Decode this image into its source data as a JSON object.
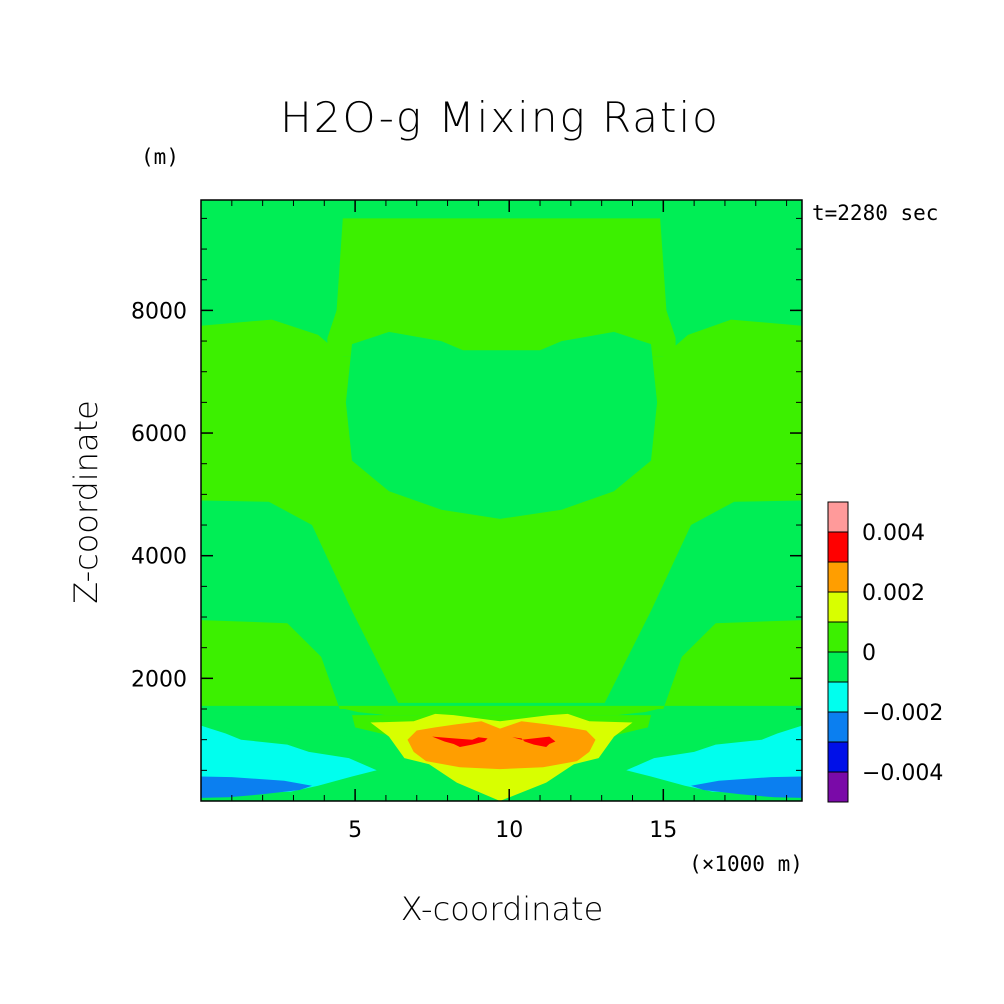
{
  "chart_data": {
    "type": "contour",
    "title": "H2O-g Mixing Ratio",
    "xlabel": "X-coordinate",
    "ylabel": "Z-coordinate",
    "x_unit": "(×1000 m)",
    "y_unit": "(m)",
    "time_label": "t=2280 sec",
    "xlim": [
      0,
      19.5
    ],
    "ylim": [
      0,
      9800
    ],
    "x_ticks": [
      5,
      10,
      15
    ],
    "x_tick_labels": [
      "5",
      "10",
      "15"
    ],
    "y_ticks": [
      2000,
      4000,
      6000,
      8000
    ],
    "y_tick_labels": [
      "2000",
      "4000",
      "6000",
      "8000"
    ],
    "colorbar": {
      "levels": [
        -0.005,
        -0.004,
        -0.003,
        -0.002,
        -0.001,
        0,
        0.001,
        0.002,
        0.003,
        0.004,
        0.005
      ],
      "colors": [
        "#7a0aa8",
        "#0010e8",
        "#0b7ff0",
        "#00ffee",
        "#00ee55",
        "#3cf000",
        "#d8ff00",
        "#ff9e00",
        "#ff0000",
        "#ff9a9a"
      ],
      "tick_values": [
        -0.004,
        -0.002,
        0,
        0.002,
        0.004
      ],
      "tick_labels": [
        "−0.004",
        "−0.002",
        "0",
        "0.002",
        "0.004"
      ]
    },
    "regions": [
      {
        "level": "0 to 0.001",
        "color": "#3cf000",
        "points": [
          [
            0,
            7750
          ],
          [
            2.3,
            7850
          ],
          [
            3.8,
            7600
          ],
          [
            4.6,
            7250
          ],
          [
            15,
            7250
          ],
          [
            15.8,
            7600
          ],
          [
            17.2,
            7850
          ],
          [
            19.5,
            7750
          ],
          [
            19.5,
            4900
          ],
          [
            17.3,
            4880
          ],
          [
            15.9,
            4500
          ],
          [
            14.6,
            3100
          ],
          [
            13.1,
            1600
          ],
          [
            6.4,
            1600
          ],
          [
            4.9,
            3100
          ],
          [
            3.6,
            4500
          ],
          [
            2.2,
            4880
          ],
          [
            0,
            4900
          ]
        ]
      },
      {
        "level": "0 to 0.001",
        "color": "#3cf000",
        "points": [
          [
            0,
            2950
          ],
          [
            2.8,
            2900
          ],
          [
            3.9,
            2350
          ],
          [
            4.5,
            1500
          ],
          [
            15,
            1500
          ],
          [
            15.6,
            2350
          ],
          [
            16.7,
            2900
          ],
          [
            19.5,
            2950
          ],
          [
            19.5,
            1550
          ],
          [
            0,
            1550
          ]
        ]
      },
      {
        "level": "0 to 0.001",
        "color": "#3cf000",
        "points": [
          [
            4.6,
            9500
          ],
          [
            14.9,
            9500
          ],
          [
            15.1,
            8000
          ],
          [
            15.4,
            7550
          ],
          [
            15.4,
            7250
          ],
          [
            4.1,
            7250
          ],
          [
            4.1,
            7550
          ],
          [
            4.4,
            8000
          ]
        ]
      },
      {
        "level": "0 to 0.001",
        "color": "#3cf000",
        "points": [
          [
            4.5,
            1520
          ],
          [
            15,
            1520
          ],
          [
            14.4,
            1450
          ],
          [
            13.5,
            1400
          ],
          [
            6,
            1400
          ],
          [
            5.1,
            1450
          ]
        ]
      },
      {
        "level": "0 to 0.001",
        "color": "#3cf000",
        "points": [
          [
            4.9,
            1400
          ],
          [
            14.6,
            1400
          ],
          [
            14.5,
            1200
          ],
          [
            12.8,
            1000
          ],
          [
            6.7,
            1000
          ],
          [
            5,
            1200
          ]
        ]
      },
      {
        "level": "-0.001 to 0",
        "color": "#00ee55",
        "points": [
          [
            4.9,
            7450
          ],
          [
            6.1,
            7650
          ],
          [
            7.8,
            7500
          ],
          [
            8.5,
            7350
          ],
          [
            11,
            7350
          ],
          [
            11.7,
            7500
          ],
          [
            13.4,
            7650
          ],
          [
            14.6,
            7450
          ],
          [
            14.8,
            6500
          ],
          [
            14.6,
            5550
          ],
          [
            13.4,
            5050
          ],
          [
            11.7,
            4750
          ],
          [
            9.7,
            4600
          ],
          [
            7.8,
            4750
          ],
          [
            6.1,
            5050
          ],
          [
            4.9,
            5550
          ],
          [
            4.7,
            6500
          ]
        ]
      },
      {
        "level": "-0.001 to 0",
        "color": "#00ee55",
        "points": [
          [
            0,
            1550
          ],
          [
            0.3,
            1450
          ],
          [
            1.7,
            1400
          ],
          [
            2.7,
            1200
          ],
          [
            3.5,
            1100
          ],
          [
            4.9,
            1050
          ],
          [
            5.4,
            900
          ],
          [
            6.2,
            850
          ],
          [
            7,
            350
          ],
          [
            8.2,
            250
          ],
          [
            9.2,
            0
          ],
          [
            10.3,
            0
          ],
          [
            11.3,
            250
          ],
          [
            12.5,
            350
          ],
          [
            13.3,
            850
          ],
          [
            14.1,
            900
          ],
          [
            14.6,
            1050
          ],
          [
            16,
            1100
          ],
          [
            16.8,
            1200
          ],
          [
            17.8,
            1400
          ],
          [
            19.2,
            1450
          ],
          [
            19.5,
            1550
          ],
          [
            19.5,
            0
          ],
          [
            0,
            0
          ]
        ]
      },
      {
        "level": "0.001 to 0.002",
        "color": "#d8ff00",
        "points": [
          [
            5.5,
            1280
          ],
          [
            6.9,
            1300
          ],
          [
            7.6,
            1420
          ],
          [
            8.2,
            1400
          ],
          [
            9.7,
            1300
          ],
          [
            11.3,
            1400
          ],
          [
            11.9,
            1420
          ],
          [
            12.6,
            1300
          ],
          [
            14,
            1280
          ],
          [
            13.4,
            1050
          ],
          [
            12.9,
            700
          ],
          [
            12.1,
            600
          ],
          [
            11.2,
            300
          ],
          [
            9.7,
            0
          ],
          [
            8.3,
            300
          ],
          [
            7.4,
            600
          ],
          [
            6.6,
            700
          ],
          [
            6.1,
            1050
          ]
        ]
      },
      {
        "level": "0.002 to 0.003",
        "color": "#ff9e00",
        "points": [
          [
            7,
            1150
          ],
          [
            7.6,
            1200
          ],
          [
            8.3,
            1250
          ],
          [
            9.1,
            1300
          ],
          [
            9.7,
            1180
          ],
          [
            10.4,
            1300
          ],
          [
            11.2,
            1250
          ],
          [
            11.9,
            1200
          ],
          [
            12.5,
            1150
          ],
          [
            12.8,
            1000
          ],
          [
            12.6,
            800
          ],
          [
            12.2,
            650
          ],
          [
            11.1,
            550
          ],
          [
            9.7,
            520
          ],
          [
            8.4,
            550
          ],
          [
            7.3,
            650
          ],
          [
            6.9,
            800
          ],
          [
            6.7,
            1000
          ]
        ]
      },
      {
        "level": "0.003 to 0.004",
        "color": "#ff0000",
        "points": [
          [
            7.5,
            1050
          ],
          [
            8.2,
            1020
          ],
          [
            8.8,
            1000
          ],
          [
            9,
            1040
          ],
          [
            9.3,
            1020
          ],
          [
            9.2,
            970
          ],
          [
            8.8,
            920
          ],
          [
            8.4,
            880
          ],
          [
            8.2,
            930
          ],
          [
            7.9,
            970
          ]
        ]
      },
      {
        "level": "0.003 to 0.004",
        "color": "#ff0000",
        "points": [
          [
            11.3,
            1050
          ],
          [
            10.8,
            1020
          ],
          [
            10.4,
            1000
          ],
          [
            10.1,
            1040
          ],
          [
            10.4,
            1020
          ],
          [
            10.5,
            970
          ],
          [
            10.8,
            920
          ],
          [
            11.2,
            880
          ],
          [
            11.3,
            930
          ],
          [
            11.5,
            970
          ]
        ]
      },
      {
        "level": "-0.002 to -0.001",
        "color": "#00ffee",
        "points": [
          [
            0,
            1230
          ],
          [
            0.8,
            1100
          ],
          [
            1.3,
            1000
          ],
          [
            2.8,
            920
          ],
          [
            3.5,
            800
          ],
          [
            4.8,
            700
          ],
          [
            5.7,
            500
          ],
          [
            4.9,
            400
          ],
          [
            3.8,
            250
          ],
          [
            2.9,
            150
          ],
          [
            0,
            100
          ]
        ]
      },
      {
        "level": "-0.002 to -0.001",
        "color": "#00ffee",
        "points": [
          [
            19.5,
            1230
          ],
          [
            18.7,
            1100
          ],
          [
            18.2,
            1000
          ],
          [
            16.7,
            920
          ],
          [
            16,
            800
          ],
          [
            14.7,
            700
          ],
          [
            13.8,
            500
          ],
          [
            14.6,
            400
          ],
          [
            15.7,
            250
          ],
          [
            16.6,
            150
          ],
          [
            19.5,
            100
          ]
        ]
      },
      {
        "level": "-0.003 to -0.002",
        "color": "#0b7ff0",
        "points": [
          [
            0,
            400
          ],
          [
            1,
            390
          ],
          [
            2.7,
            330
          ],
          [
            3.6,
            250
          ],
          [
            3.2,
            180
          ],
          [
            2,
            110
          ],
          [
            0.9,
            60
          ],
          [
            0,
            50
          ]
        ]
      },
      {
        "level": "-0.003 to -0.002",
        "color": "#0b7ff0",
        "points": [
          [
            19.5,
            400
          ],
          [
            18.5,
            390
          ],
          [
            16.8,
            330
          ],
          [
            15.9,
            250
          ],
          [
            16.3,
            180
          ],
          [
            17.5,
            110
          ],
          [
            18.6,
            60
          ],
          [
            19.5,
            50
          ]
        ]
      }
    ]
  }
}
